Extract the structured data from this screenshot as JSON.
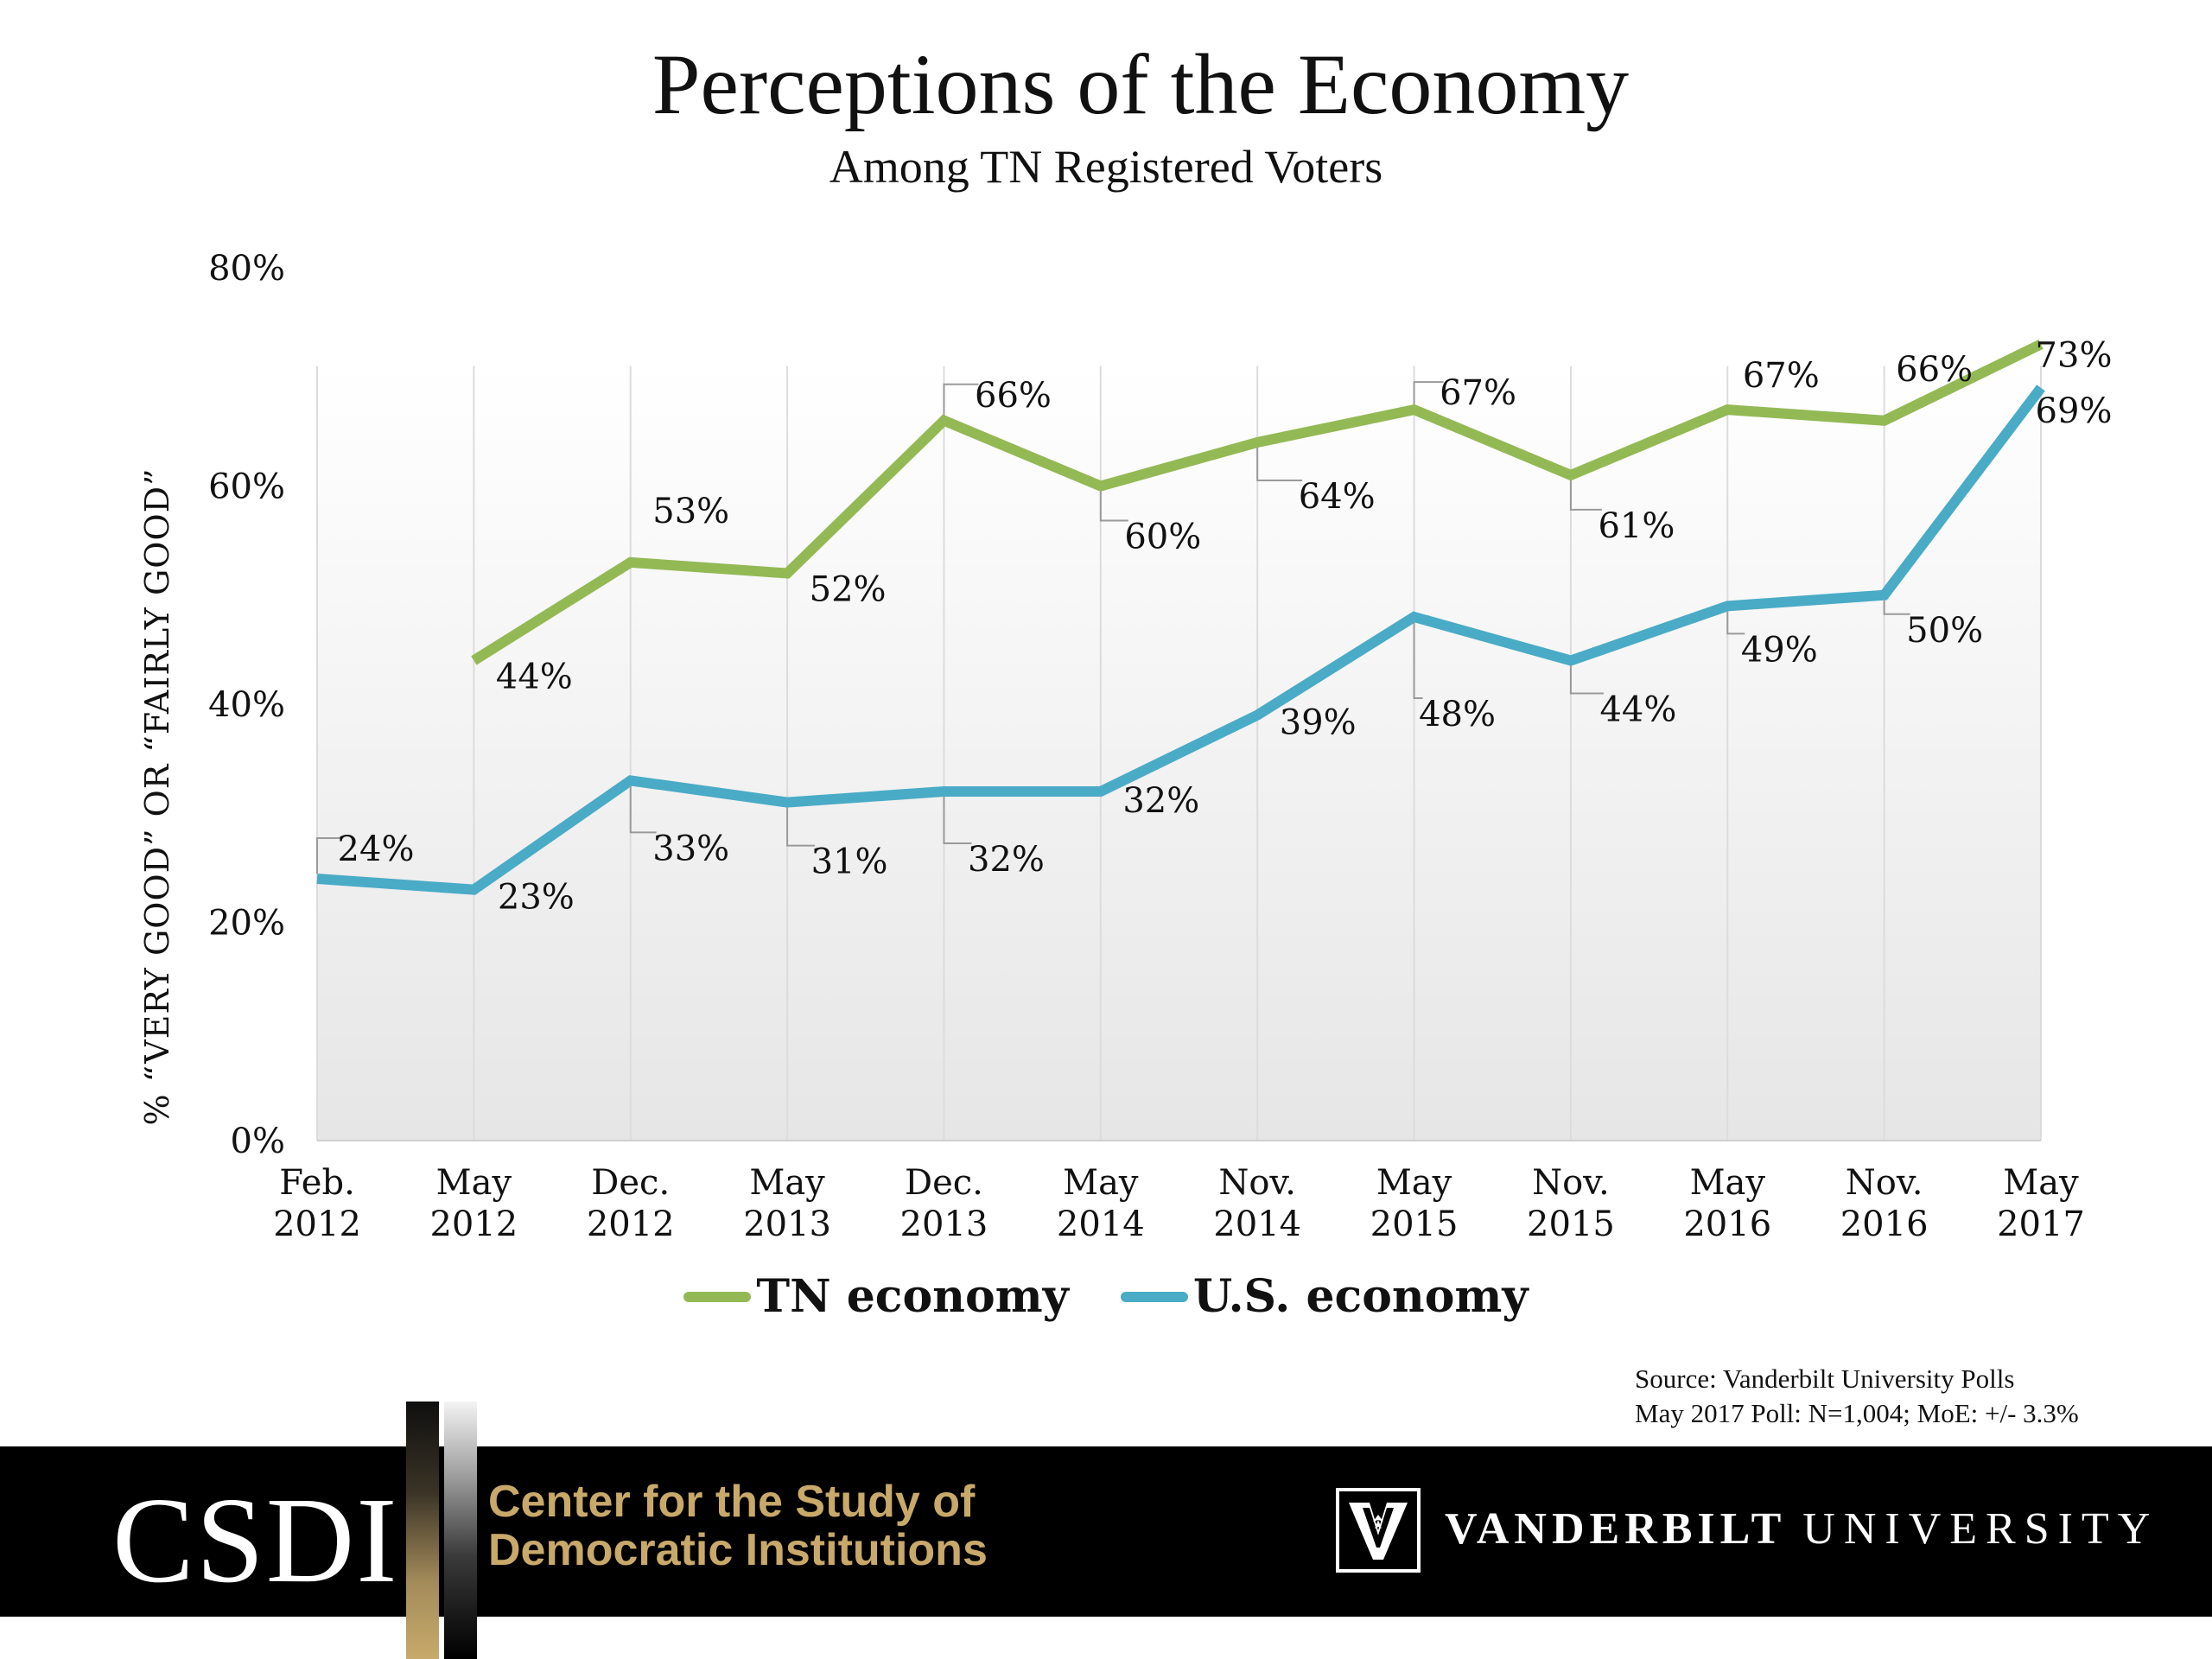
{
  "header": {
    "title": "Perceptions of the Economy",
    "subtitle": "Among TN Registered Voters"
  },
  "chart_data": {
    "type": "line",
    "title": "Perceptions of the Economy",
    "subtitle": "Among TN Registered Voters",
    "xlabel": "",
    "ylabel": "% “VERY GOOD” OR “FAIRLY GOOD”",
    "ylim": [
      0,
      80
    ],
    "yticks": [
      "0%",
      "20%",
      "40%",
      "60%",
      "80%"
    ],
    "categories": [
      [
        "Feb.",
        "2012"
      ],
      [
        "May",
        "2012"
      ],
      [
        "Dec.",
        "2012"
      ],
      [
        "May",
        "2013"
      ],
      [
        "Dec.",
        "2013"
      ],
      [
        "May",
        "2014"
      ],
      [
        "Nov.",
        "2014"
      ],
      [
        "May",
        "2015"
      ],
      [
        "Nov.",
        "2015"
      ],
      [
        "May",
        "2016"
      ],
      [
        "Nov.",
        "2016"
      ],
      [
        "May",
        "2017"
      ]
    ],
    "series": [
      {
        "name": "TN economy",
        "color": "#93b955",
        "values": [
          null,
          44,
          53,
          52,
          66,
          60,
          64,
          67,
          61,
          67,
          66,
          73
        ],
        "labels": [
          null,
          "44%",
          "53%",
          "52%",
          "66%",
          "60%",
          "64%",
          "67%",
          "61%",
          "67%",
          "66%",
          "73%"
        ]
      },
      {
        "name": "U.S. economy",
        "color": "#4aabc6",
        "values": [
          24,
          23,
          33,
          31,
          32,
          32,
          39,
          48,
          44,
          49,
          50,
          69
        ],
        "labels": [
          "24%",
          "23%",
          "33%",
          "31%",
          "32%",
          "32%",
          "39%",
          "48%",
          "44%",
          "49%",
          "50%",
          "69%"
        ]
      }
    ],
    "legend_position": "bottom-center",
    "grid": "vertical"
  },
  "source": {
    "line1": "Source: Vanderbilt University Polls",
    "line2": "May 2017 Poll: N=1,004; MoE: +/- 3.3%"
  },
  "footer": {
    "csdi": "CSDI",
    "center_line1": "Center for the Study of",
    "center_line2": "Democratic Institutions",
    "vu_bold": "VANDERBILT",
    "vu_light": "UNIVERSITY"
  }
}
